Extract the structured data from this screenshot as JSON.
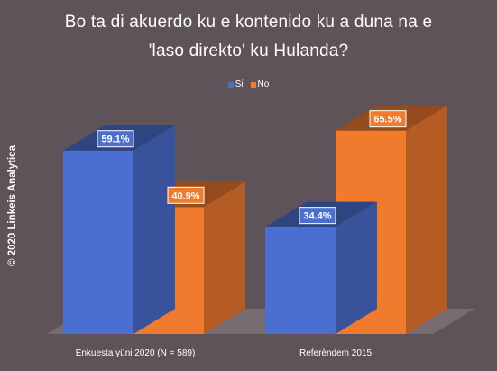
{
  "chart_data": {
    "type": "bar",
    "title_lines": [
      "Bo ta di akuerdo ku e kontenido ku a duna na e",
      "'laso direkto' ku Hulanda?"
    ],
    "categories": [
      "Enkuesta yüni 2020 (N = 589)",
      "Referèndem 2015"
    ],
    "series": [
      {
        "name": "Si",
        "values": [
          59.1,
          34.4
        ],
        "color": "#4a6fd0"
      },
      {
        "name": "No",
        "values": [
          40.9,
          65.5
        ],
        "color": "#f07a2e"
      }
    ],
    "data_labels": [
      [
        "59.1%",
        "34.4%"
      ],
      [
        "40.9%",
        "65.5%"
      ]
    ],
    "ylim": [
      0,
      80
    ],
    "legend_position": "top-center",
    "grid": false
  },
  "watermark": "© 2020 Linkeis Analytica"
}
